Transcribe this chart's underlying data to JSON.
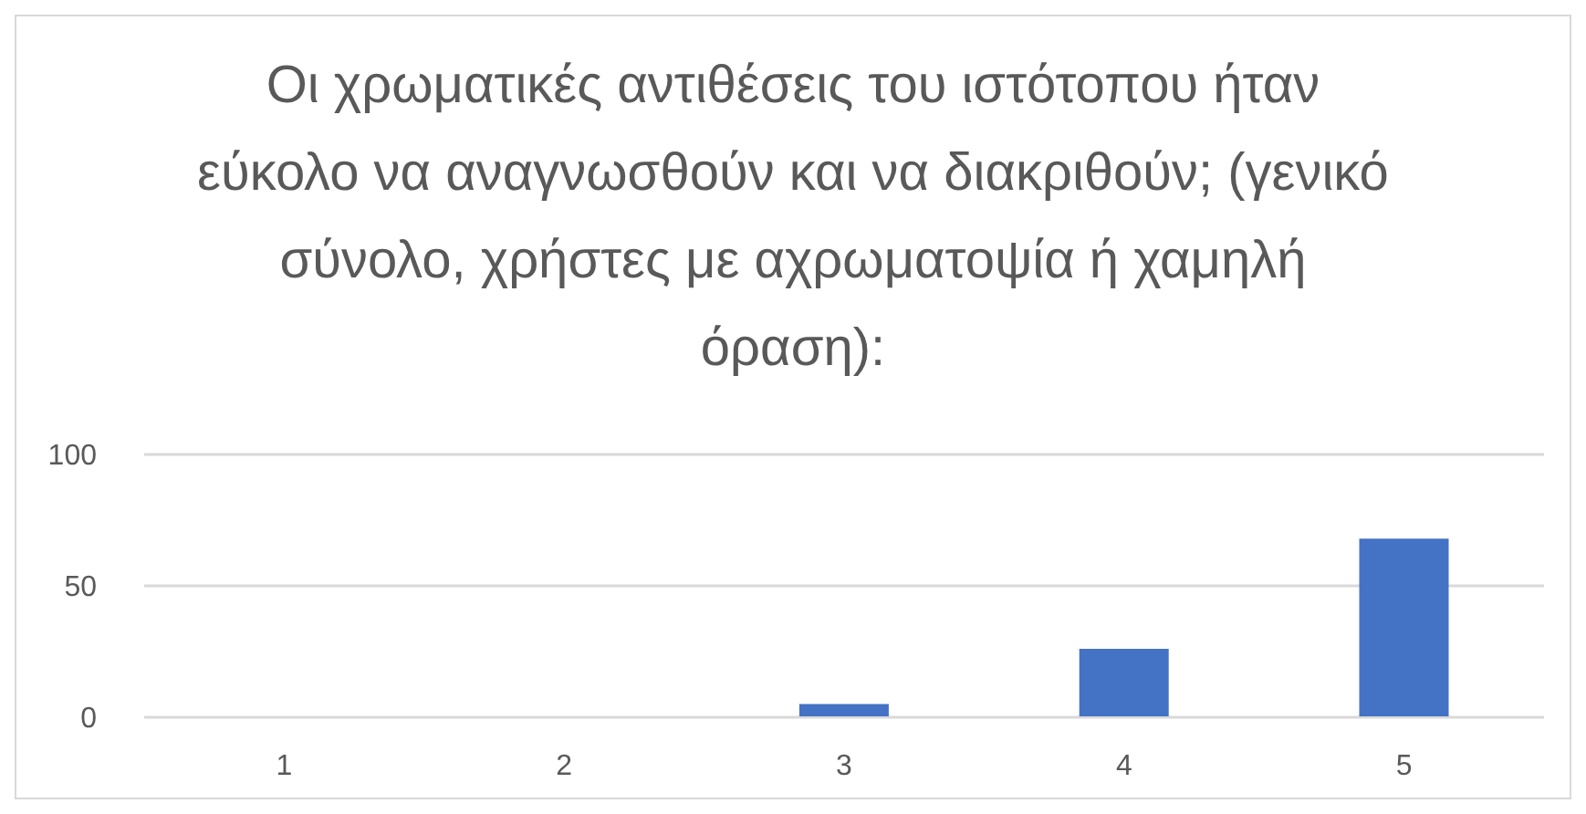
{
  "chart_data": {
    "type": "bar",
    "title": "Οι χρωματικές αντιθέσεις του ιστότοπου ήταν εύκολο να αναγνωσθούν και να διακριθούν; (γενικό σύνολο, χρήστες με αχρωματοψία ή χαμηλή όραση):",
    "categories": [
      "1",
      "2",
      "3",
      "4",
      "5"
    ],
    "values": [
      0,
      0,
      5,
      26,
      68
    ],
    "color": "#4472c4",
    "ylim": [
      0,
      100
    ],
    "yticks": [
      0,
      50,
      100
    ],
    "grid": "y"
  }
}
